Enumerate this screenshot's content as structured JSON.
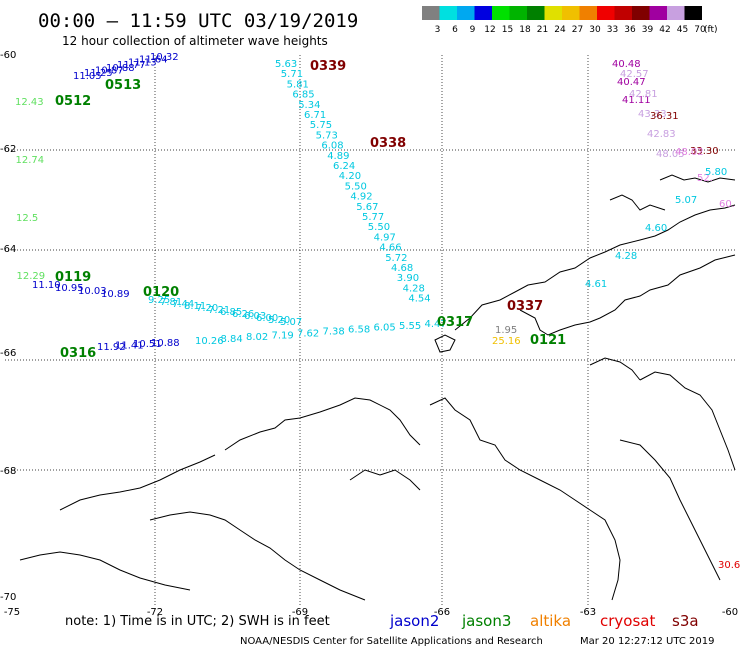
{
  "header": {
    "title": "00:00 – 11:59 UTC 03/19/2019",
    "subtitle": "12 hour collection of altimeter wave heights"
  },
  "colorbar": {
    "labels": [
      "3",
      "6",
      "9",
      "12",
      "15",
      "18",
      "21",
      "24",
      "27",
      "30",
      "33",
      "36",
      "39",
      "42",
      "45",
      "70"
    ],
    "unit": "(ft)",
    "colors": [
      "#808080",
      "#00e0e0",
      "#00a8f0",
      "#0000e0",
      "#00e000",
      "#00b400",
      "#008000",
      "#e0e000",
      "#f0c000",
      "#f08000",
      "#f00000",
      "#c00000",
      "#800000",
      "#a000a0",
      "#c8a0e0",
      "#000000"
    ]
  },
  "axes": {
    "lat_labels": [
      "-60",
      "-62",
      "-64",
      "-66",
      "-68",
      "-70"
    ],
    "lon_labels": [
      "-75",
      "-72",
      "-69",
      "-66",
      "-63",
      "-60"
    ]
  },
  "satellites": [
    {
      "name": "jason2",
      "color": "#0000cc"
    },
    {
      "name": "jason3",
      "color": "#008000"
    },
    {
      "name": "altika",
      "color": "#f08000"
    },
    {
      "name": "cryosat",
      "color": "#e00000"
    },
    {
      "name": "s3a",
      "color": "#800000"
    }
  ],
  "footer": {
    "note": "note: 1) Time is in UTC; 2) SWH is in feet",
    "credit": "NOAA/NESDIS Center for Satellite Applications and Research",
    "timestamp": "Mar 20 12:27:12 UTC 2019"
  },
  "pass_labels": [
    {
      "text": "0339",
      "color": "#800000"
    },
    {
      "text": "0338",
      "color": "#800000"
    },
    {
      "text": "0337",
      "color": "#800000"
    },
    {
      "text": "0513",
      "color": "#008000"
    },
    {
      "text": "0512",
      "color": "#008000"
    },
    {
      "text": "0119",
      "color": "#008000"
    },
    {
      "text": "0120",
      "color": "#008000"
    },
    {
      "text": "0317",
      "color": "#008000"
    },
    {
      "text": "0316",
      "color": "#008000"
    },
    {
      "text": "0121",
      "color": "#008000"
    }
  ],
  "tracks": [
    {
      "color": "#00c8e0",
      "values": [
        "5.63",
        "5.71",
        "5.81",
        "6.85",
        "5.34",
        "6.71",
        "5.75",
        "5.73",
        "6.08",
        "4.89",
        "6.24",
        "4.20",
        "5.50",
        "4.92",
        "5.67",
        "5.77",
        "5.50",
        "4.97",
        "4.66",
        "5.72",
        "4.68",
        "3.90",
        "4.28",
        "4.54"
      ]
    },
    {
      "color": "#0000cc",
      "values": [
        "10.32",
        "11.64",
        "11.13",
        "11.77",
        "10.88",
        "10.87",
        "11.25",
        "11.05"
      ]
    },
    {
      "color": "#00c8e0",
      "values": [
        "9.25",
        "7.81",
        "7.44",
        "8.11",
        "7.20",
        "7.21",
        "6.85",
        "6.26",
        "6.03",
        "6.00",
        "5.20",
        "5.07"
      ]
    },
    {
      "color": "#0000cc",
      "values": [
        "11.10",
        "10.95",
        "10.03",
        "10.89"
      ]
    },
    {
      "color": "#00c8e0",
      "values": [
        "10.26",
        "8.84",
        "8.02",
        "7.19",
        "7.62",
        "7.38",
        "6.58",
        "6.05",
        "5.55",
        "4.47"
      ]
    },
    {
      "color": "#0000cc",
      "values": [
        "11.92",
        "11.41",
        "10.51",
        "10.88"
      ]
    },
    {
      "color": "#60e060",
      "values": [
        "12.43",
        "12.74",
        "12.5",
        "12.29"
      ]
    },
    {
      "color": "#a000a0",
      "values": [
        "40.48",
        "40.47",
        "41.11"
      ]
    },
    {
      "color": "#c8a0e0",
      "values": [
        "42.57",
        "42.81",
        "43.33",
        "42.83",
        "48.05"
      ]
    },
    {
      "color": "#800000",
      "values": [
        "36.31",
        "33.30"
      ]
    },
    {
      "color": "#e080e0",
      "values": [
        "48.02",
        "52.",
        "60."
      ]
    },
    {
      "color": "#00c8e0",
      "values": [
        "5.80",
        "5.07",
        "4.60",
        "4.28",
        "4.61"
      ]
    },
    {
      "color": "#808080",
      "values": [
        "1.95"
      ]
    },
    {
      "color": "#f0c000",
      "values": [
        "25.16"
      ]
    },
    {
      "color": "#e00000",
      "values": [
        "30.6"
      ]
    }
  ]
}
